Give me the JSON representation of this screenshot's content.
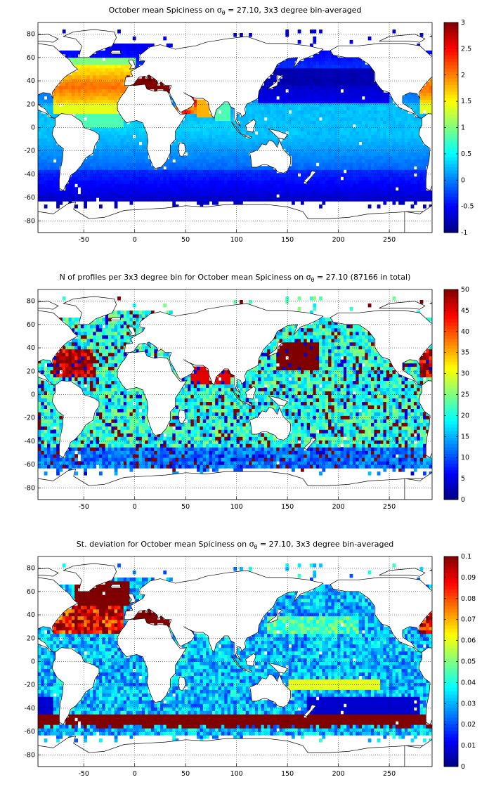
{
  "panels": [
    {
      "id": "mean",
      "title_parts": {
        "pre": "October mean Spiciness on ",
        "sym": "σ",
        "sub": "θ",
        "post": " = 27.10, 3x3 degree bin-averaged"
      },
      "colorbar": {
        "min": -1,
        "max": 3,
        "ticks": [
          "-1",
          "-0.5",
          "0",
          "0.5",
          "1",
          "1.5",
          "2",
          "2.5",
          "3"
        ]
      },
      "colormap": "jet",
      "field": "mean"
    },
    {
      "id": "nprofiles",
      "title_parts": {
        "pre": "N of profiles per 3x3 degree bin for October mean Spiciness on ",
        "sym": "σ",
        "sub": "θ",
        "post": " = 27.10 (87166 in total)"
      },
      "colorbar": {
        "min": 0,
        "max": 50,
        "ticks": [
          "0",
          "5",
          "10",
          "15",
          "20",
          "25",
          "30",
          "35",
          "40",
          "45",
          "50"
        ]
      },
      "colormap": "jet",
      "field": "count"
    },
    {
      "id": "stdev",
      "title_parts": {
        "pre": "St. deviation for October mean Spiciness on ",
        "sym": "σ",
        "sub": "θ",
        "post": " = 27.10, 3x3 degree bin-averaged"
      },
      "colorbar": {
        "min": 0,
        "max": 0.1,
        "ticks": [
          "0",
          "0.01",
          "0.02",
          "0.03",
          "0.04",
          "0.05",
          "0.06",
          "0.07",
          "0.08",
          "0.09",
          "0.1"
        ]
      },
      "colormap": "jet",
      "field": "std"
    }
  ],
  "axes": {
    "xlim": [
      -95,
      292
    ],
    "ylim": [
      -90,
      90
    ],
    "xticks": [
      "-50",
      "0",
      "50",
      "100",
      "150",
      "200",
      "250"
    ],
    "yticks": [
      "80",
      "60",
      "40",
      "20",
      "0",
      "-20",
      "-40",
      "-60",
      "-80"
    ],
    "grid": "dotted"
  }
}
